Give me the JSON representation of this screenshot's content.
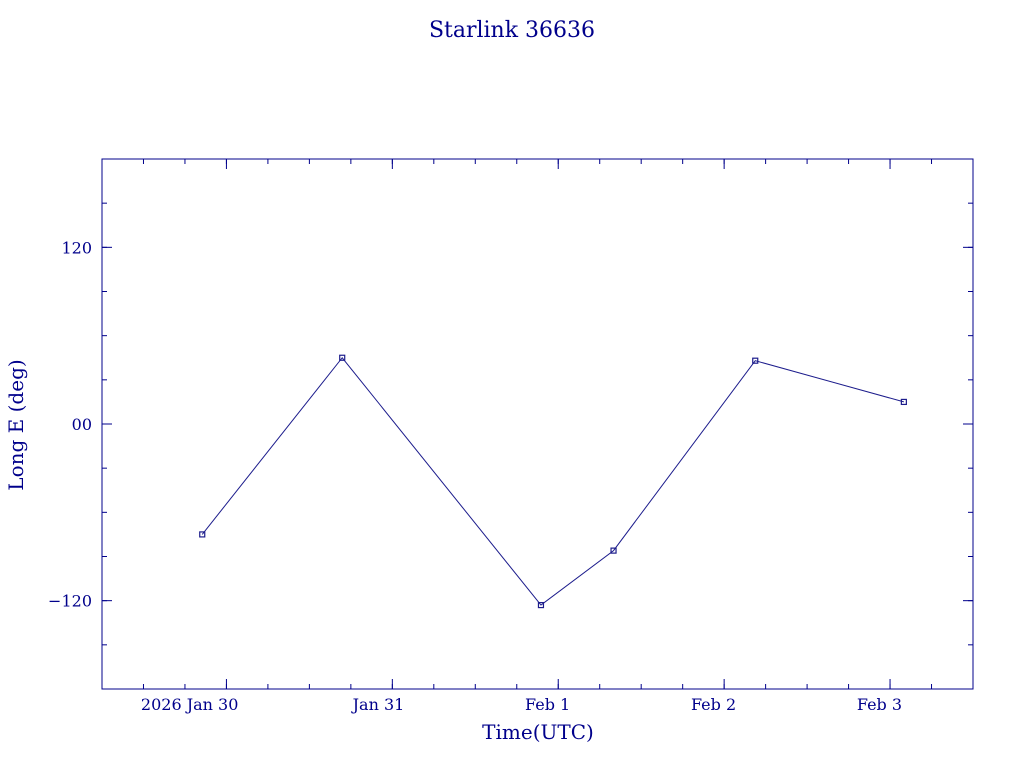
{
  "colors": {
    "ink": "#00008b",
    "series": "#1c1c8c",
    "background": "#ffffff"
  },
  "chart_data": {
    "type": "line",
    "title": "Starlink 36636",
    "xlabel": "Time(UTC)",
    "ylabel": "Long E (deg)",
    "x_axis": {
      "kind": "date",
      "range": [
        "2026-01-29T06:00Z",
        "2026-02-03T12:00Z"
      ],
      "ticks": [
        {
          "at": "2026-01-30T00:00Z",
          "label": "2026 Jan 30"
        },
        {
          "at": "2026-01-31T00:00Z",
          "label": "Jan 31"
        },
        {
          "at": "2026-02-01T00:00Z",
          "label": "Feb  1"
        },
        {
          "at": "2026-02-02T00:00Z",
          "label": "Feb  2"
        },
        {
          "at": "2026-02-03T00:00Z",
          "label": "Feb  3"
        }
      ]
    },
    "y_axis": {
      "range": [
        -180,
        180
      ],
      "ticks": [
        {
          "value": 120,
          "label": "120"
        },
        {
          "value": 0,
          "label": "00"
        },
        {
          "value": -120,
          "label": "−120"
        }
      ]
    },
    "grid": false,
    "series": [
      {
        "marker": "square",
        "points": [
          {
            "x": "2026-01-29T20:30Z",
            "y": -75
          },
          {
            "x": "2026-01-30T16:45Z",
            "y": 45
          },
          {
            "x": "2026-01-31T21:30Z",
            "y": -123
          },
          {
            "x": "2026-02-01T08:00Z",
            "y": -86
          },
          {
            "x": "2026-02-02T04:30Z",
            "y": 43
          },
          {
            "x": "2026-02-03T02:00Z",
            "y": 15
          }
        ]
      }
    ]
  }
}
